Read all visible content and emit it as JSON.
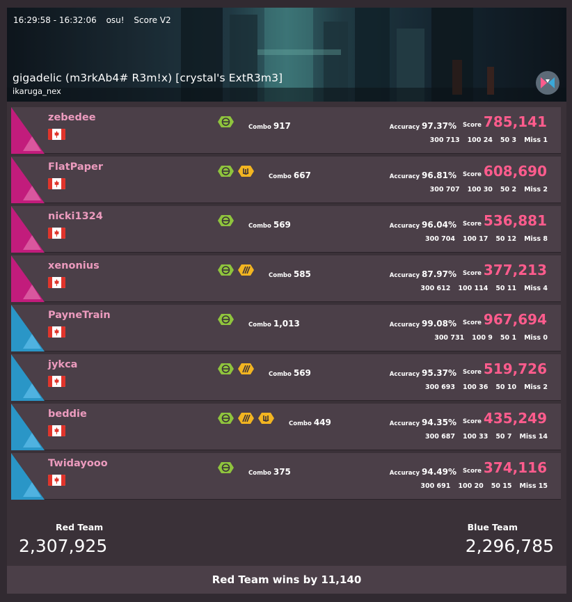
{
  "banner": {
    "time_range": "16:29:58 - 16:32:06",
    "game": "osu!",
    "scoring": "Score V2",
    "map_title": "gigadelic (m3rkAb4# R3m!x) [crystal's ExtR3m3]",
    "mapper": "ikaruga_nex"
  },
  "labels": {
    "combo": "Combo",
    "accuracy": "Accuracy",
    "score": "Score"
  },
  "players": [
    {
      "team": "red",
      "name": "zebedee",
      "mods": [
        "hidden-icon"
      ],
      "combo": "917",
      "accuracy": "97.37%",
      "score": "785,141",
      "h300": "300 713",
      "h100": "100 24",
      "h50": "50 3",
      "miss": "Miss 1"
    },
    {
      "team": "red",
      "name": "FlatPaper",
      "mods": [
        "hidden-icon",
        "hardrock-icon"
      ],
      "combo": "667",
      "accuracy": "96.81%",
      "score": "608,690",
      "h300": "300 707",
      "h100": "100 30",
      "h50": "50 2",
      "miss": "Miss 2"
    },
    {
      "team": "red",
      "name": "nicki1324",
      "mods": [
        "hidden-icon"
      ],
      "combo": "569",
      "accuracy": "96.04%",
      "score": "536,881",
      "h300": "300 704",
      "h100": "100 17",
      "h50": "50 12",
      "miss": "Miss 8"
    },
    {
      "team": "red",
      "name": "xenonius",
      "mods": [
        "hidden-icon",
        "doubletime-icon"
      ],
      "combo": "585",
      "accuracy": "87.97%",
      "score": "377,213",
      "h300": "300 612",
      "h100": "100 114",
      "h50": "50 11",
      "miss": "Miss 4"
    },
    {
      "team": "blue",
      "name": "PayneTrain",
      "mods": [
        "hidden-icon"
      ],
      "combo": "1,013",
      "accuracy": "99.08%",
      "score": "967,694",
      "h300": "300 731",
      "h100": "100 9",
      "h50": "50 1",
      "miss": "Miss 0"
    },
    {
      "team": "blue",
      "name": "jykca",
      "mods": [
        "hidden-icon",
        "doubletime-icon"
      ],
      "combo": "569",
      "accuracy": "95.37%",
      "score": "519,726",
      "h300": "300 693",
      "h100": "100 36",
      "h50": "50 10",
      "miss": "Miss 2"
    },
    {
      "team": "blue",
      "name": "beddie",
      "mods": [
        "hidden-icon",
        "doubletime-icon",
        "hardrock-icon"
      ],
      "combo": "449",
      "accuracy": "94.35%",
      "score": "435,249",
      "h300": "300 687",
      "h100": "100 33",
      "h50": "50 7",
      "miss": "Miss 14"
    },
    {
      "team": "blue",
      "name": "Twidayooo",
      "mods": [
        "hidden-icon"
      ],
      "combo": "375",
      "accuracy": "94.49%",
      "score": "374,116",
      "h300": "300 691",
      "h100": "100 20",
      "h50": "50 15",
      "miss": "Miss 15"
    }
  ],
  "teams": {
    "red_label": "Red Team",
    "red_score": "2,307,925",
    "blue_label": "Blue Team",
    "blue_score": "2,296,785"
  },
  "result": "Red Team wins by 11,140",
  "colors": {
    "red_team": "#c21c7c",
    "blue_team": "#2a96c7",
    "score_accent": "#ff5c8d",
    "name": "#ec9bbe",
    "hidden_mod": "#8fc43d",
    "dt_hr_mod": "#f2b521"
  }
}
